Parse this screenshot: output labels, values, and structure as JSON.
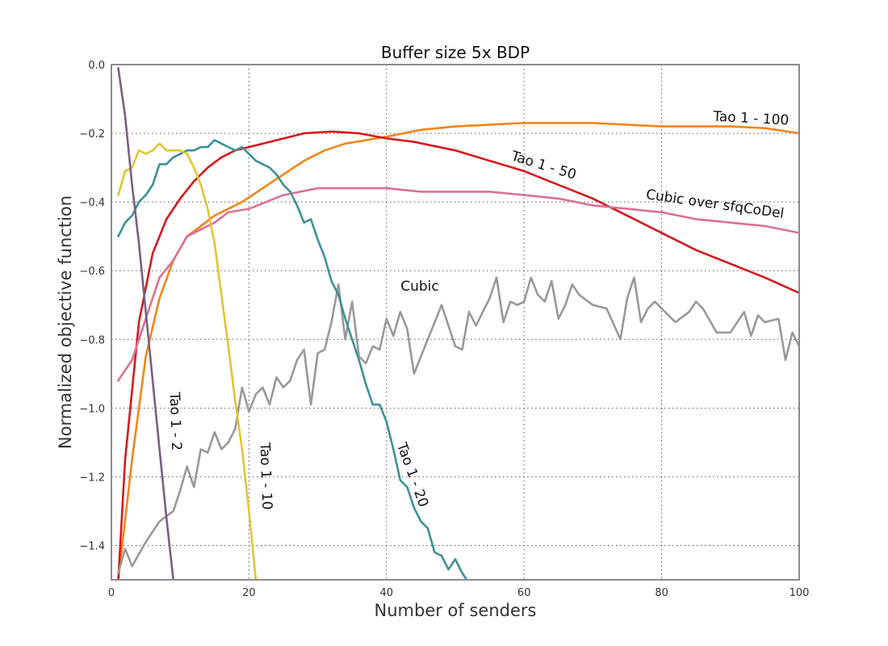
{
  "chart_data": {
    "type": "line",
    "title": "Buffer size 5x BDP",
    "xlabel": "Number of senders",
    "ylabel": "Normalized objective function",
    "xlim": [
      0,
      100
    ],
    "ylim": [
      -1.5,
      0.0
    ],
    "xticks": [
      0,
      20,
      40,
      60,
      80,
      100
    ],
    "xtick_labels": [
      "0",
      "20",
      "40",
      "60",
      "80",
      "100"
    ],
    "yticks": [
      0.0,
      -0.2,
      -0.4,
      -0.6,
      -0.8,
      -1.0,
      -1.2,
      -1.4
    ],
    "ytick_labels": [
      "0.0",
      "−0.2",
      "−0.4",
      "−0.6",
      "−0.8",
      "−1.0",
      "−1.2",
      "−1.4"
    ],
    "grid": true,
    "legend": "none",
    "series": [
      {
        "name": "Tao 1 - 100",
        "color": "#f28518",
        "x": [
          1,
          3,
          5,
          7,
          9,
          11,
          13,
          15,
          17,
          19,
          22,
          25,
          28,
          31,
          34,
          37,
          40,
          45,
          50,
          55,
          60,
          65,
          70,
          75,
          80,
          85,
          90,
          95,
          100
        ],
        "y": [
          -1.5,
          -1.15,
          -0.85,
          -0.68,
          -0.57,
          -0.5,
          -0.47,
          -0.44,
          -0.42,
          -0.4,
          -0.36,
          -0.32,
          -0.28,
          -0.25,
          -0.23,
          -0.22,
          -0.21,
          -0.19,
          -0.18,
          -0.175,
          -0.17,
          -0.17,
          -0.17,
          -0.175,
          -0.18,
          -0.18,
          -0.18,
          -0.185,
          -0.2
        ]
      },
      {
        "name": "Tao 1 - 50",
        "color": "#d7191c",
        "x": [
          1,
          2,
          4,
          6,
          8,
          10,
          12,
          14,
          16,
          18,
          20,
          24,
          28,
          32,
          36,
          40,
          44,
          50,
          55,
          60,
          65,
          70,
          75,
          80,
          85,
          90,
          95,
          100
        ],
        "y": [
          -1.5,
          -1.15,
          -0.75,
          -0.55,
          -0.45,
          -0.39,
          -0.34,
          -0.3,
          -0.27,
          -0.25,
          -0.24,
          -0.22,
          -0.2,
          -0.195,
          -0.2,
          -0.215,
          -0.225,
          -0.25,
          -0.28,
          -0.31,
          -0.35,
          -0.39,
          -0.44,
          -0.49,
          -0.54,
          -0.58,
          -0.62,
          -0.665
        ]
      },
      {
        "name": "Cubic over sfqCoDel",
        "color": "#db7093",
        "x": [
          1,
          3,
          5,
          7,
          9,
          11,
          13,
          15,
          17,
          20,
          25,
          30,
          35,
          40,
          45,
          50,
          55,
          60,
          65,
          70,
          75,
          80,
          85,
          90,
          95,
          100
        ],
        "y": [
          -0.92,
          -0.86,
          -0.74,
          -0.62,
          -0.57,
          -0.5,
          -0.48,
          -0.46,
          -0.43,
          -0.42,
          -0.38,
          -0.36,
          -0.36,
          -0.36,
          -0.37,
          -0.37,
          -0.37,
          -0.38,
          -0.39,
          -0.41,
          -0.42,
          -0.43,
          -0.45,
          -0.46,
          -0.47,
          -0.49
        ]
      },
      {
        "name": "Cubic",
        "color": "#999999",
        "x": [
          1,
          2,
          3,
          5,
          7,
          9,
          10,
          11,
          12,
          13,
          14,
          15,
          16,
          17,
          18,
          19,
          20,
          21,
          22,
          23,
          24,
          25,
          26,
          27,
          28,
          29,
          30,
          31,
          32,
          33,
          34,
          35,
          36,
          37,
          38,
          39,
          40,
          41,
          42,
          43,
          44,
          45,
          46,
          48,
          50,
          51,
          52,
          53,
          54,
          55,
          56,
          57,
          58,
          59,
          60,
          61,
          62,
          63,
          64,
          65,
          66,
          67,
          68,
          70,
          72,
          74,
          75,
          76,
          77,
          78,
          79,
          80,
          82,
          84,
          85,
          86,
          88,
          90,
          92,
          93,
          94,
          95,
          97,
          98,
          99,
          100
        ],
        "y": [
          -1.48,
          -1.41,
          -1.46,
          -1.39,
          -1.33,
          -1.3,
          -1.24,
          -1.17,
          -1.23,
          -1.12,
          -1.13,
          -1.07,
          -1.12,
          -1.1,
          -1.06,
          -0.94,
          -1.01,
          -0.96,
          -0.94,
          -0.99,
          -0.91,
          -0.94,
          -0.92,
          -0.86,
          -0.83,
          -0.99,
          -0.84,
          -0.83,
          -0.75,
          -0.64,
          -0.8,
          -0.69,
          -0.85,
          -0.87,
          -0.82,
          -0.83,
          -0.74,
          -0.79,
          -0.72,
          -0.77,
          -0.9,
          -0.85,
          -0.8,
          -0.7,
          -0.82,
          -0.83,
          -0.72,
          -0.76,
          -0.72,
          -0.68,
          -0.62,
          -0.75,
          -0.69,
          -0.7,
          -0.69,
          -0.62,
          -0.67,
          -0.69,
          -0.63,
          -0.74,
          -0.7,
          -0.64,
          -0.67,
          -0.7,
          -0.71,
          -0.8,
          -0.68,
          -0.62,
          -0.75,
          -0.71,
          -0.69,
          -0.71,
          -0.75,
          -0.72,
          -0.69,
          -0.71,
          -0.78,
          -0.78,
          -0.72,
          -0.79,
          -0.73,
          -0.75,
          -0.74,
          -0.86,
          -0.78,
          -0.82
        ]
      },
      {
        "name": "Tao 1 - 20",
        "color": "#3f9096",
        "x": [
          1,
          2,
          3,
          4,
          5,
          6,
          7,
          8,
          9,
          10,
          11,
          12,
          13,
          14,
          15,
          16,
          17,
          18,
          19,
          20,
          21,
          22,
          23,
          24,
          25,
          26,
          27,
          28,
          29,
          30,
          31,
          32,
          33,
          34,
          35,
          36,
          37,
          38,
          39,
          40,
          41,
          42,
          43,
          44,
          45,
          46,
          47,
          48,
          49,
          50,
          51,
          52
        ],
        "y": [
          -0.5,
          -0.46,
          -0.44,
          -0.4,
          -0.38,
          -0.35,
          -0.29,
          -0.29,
          -0.27,
          -0.26,
          -0.25,
          -0.25,
          -0.24,
          -0.24,
          -0.22,
          -0.23,
          -0.24,
          -0.25,
          -0.24,
          -0.26,
          -0.28,
          -0.29,
          -0.3,
          -0.32,
          -0.35,
          -0.37,
          -0.41,
          -0.46,
          -0.45,
          -0.51,
          -0.56,
          -0.63,
          -0.67,
          -0.74,
          -0.8,
          -0.86,
          -0.93,
          -0.99,
          -0.99,
          -1.04,
          -1.12,
          -1.21,
          -1.23,
          -1.29,
          -1.33,
          -1.35,
          -1.42,
          -1.43,
          -1.47,
          -1.44,
          -1.48,
          -1.51
        ]
      },
      {
        "name": "Tao 1 - 10",
        "color": "#e2c431",
        "x": [
          1,
          2,
          3,
          4,
          5,
          6,
          7,
          8,
          9,
          10,
          11,
          12,
          13,
          14,
          15,
          16,
          17,
          18,
          19,
          20,
          21
        ],
        "y": [
          -0.38,
          -0.31,
          -0.3,
          -0.25,
          -0.26,
          -0.25,
          -0.23,
          -0.25,
          -0.25,
          -0.25,
          -0.26,
          -0.3,
          -0.35,
          -0.42,
          -0.52,
          -0.67,
          -0.82,
          -0.98,
          -1.12,
          -1.3,
          -1.5
        ]
      },
      {
        "name": "Tao 1 - 2",
        "color": "#7a5f82",
        "x": [
          1,
          2,
          3,
          4,
          5,
          6,
          7,
          8,
          9
        ],
        "y": [
          -0.01,
          -0.15,
          -0.35,
          -0.52,
          -0.72,
          -0.92,
          -1.12,
          -1.32,
          -1.5
        ]
      }
    ],
    "annotations": [
      {
        "text": "Tao 1 - 100",
        "series": "Tao 1 - 100"
      },
      {
        "text": "Tao 1 - 50",
        "series": "Tao 1 - 50"
      },
      {
        "text": "Cubic over sfqCoDel",
        "series": "Cubic over sfqCoDel"
      },
      {
        "text": "Cubic",
        "series": "Cubic"
      },
      {
        "text": "Tao 1 - 20",
        "series": "Tao 1 - 20"
      },
      {
        "text": "Tao 1 - 10",
        "series": "Tao 1 - 10"
      },
      {
        "text": "Tao 1 - 2",
        "series": "Tao 1 - 2"
      }
    ]
  }
}
